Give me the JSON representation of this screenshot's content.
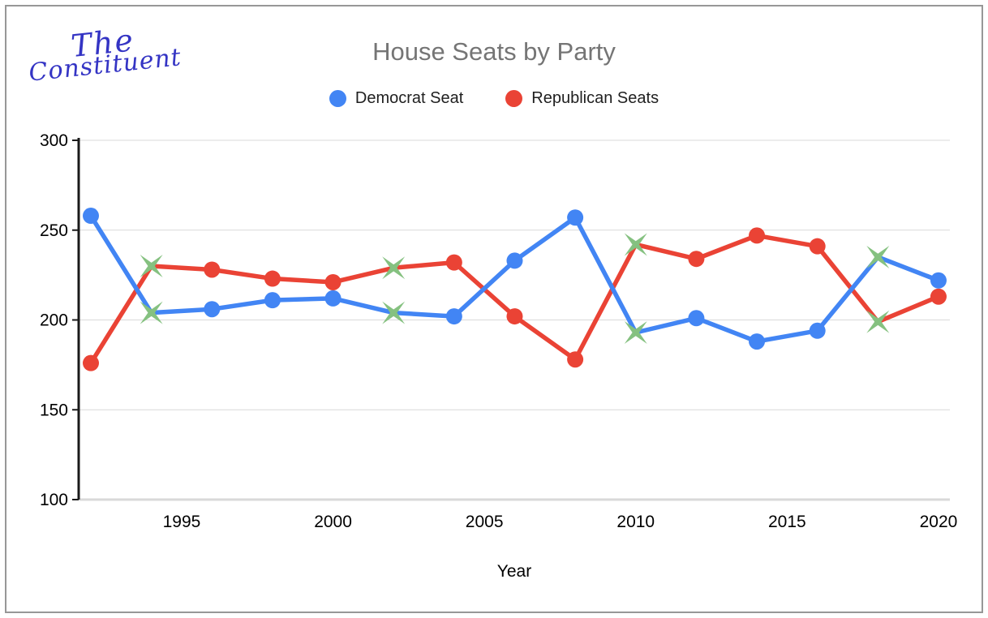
{
  "window": {
    "border_color": "#979797",
    "background": "#ffffff"
  },
  "logo": {
    "line1": "The",
    "line2": "Constituent",
    "color": "#3434c4"
  },
  "header": {
    "title": "House Seats by Party",
    "title_color": "#757575"
  },
  "legend": {
    "items": [
      {
        "label": "Democrat Seat",
        "color": "#4285f4"
      },
      {
        "label": "Republican Seats",
        "color": "#ea4335"
      }
    ]
  },
  "chart_data": {
    "type": "line",
    "title": "House Seats by Party",
    "xlabel": "Year",
    "ylabel": "",
    "x": [
      1992,
      1994,
      1996,
      1998,
      2000,
      2002,
      2004,
      2006,
      2008,
      2010,
      2012,
      2014,
      2016,
      2018,
      2020
    ],
    "series": [
      {
        "name": "Democrat Seat",
        "color": "#4285f4",
        "values": [
          258,
          204,
          206,
          211,
          212,
          204,
          202,
          233,
          257,
          193,
          201,
          188,
          194,
          235,
          222
        ]
      },
      {
        "name": "Republican Seats",
        "color": "#ea4335",
        "values": [
          176,
          230,
          228,
          223,
          221,
          229,
          232,
          202,
          178,
          242,
          234,
          247,
          241,
          199,
          213
        ]
      }
    ],
    "highlight_marker": {
      "shape": "four-point-star-x",
      "color": "#85c180",
      "years": [
        1994,
        2002,
        2010,
        2018
      ],
      "meaning": "marker shown on both series at these years"
    },
    "ylim": [
      100,
      300
    ],
    "yticks": [
      100,
      150,
      200,
      250,
      300
    ],
    "xticks": [
      1995,
      2000,
      2005,
      2010,
      2015,
      2020
    ],
    "grid": "horizontal",
    "legend_position": "top",
    "axis_text_color": "#000000",
    "gridline_color": "#d9d9d9"
  }
}
